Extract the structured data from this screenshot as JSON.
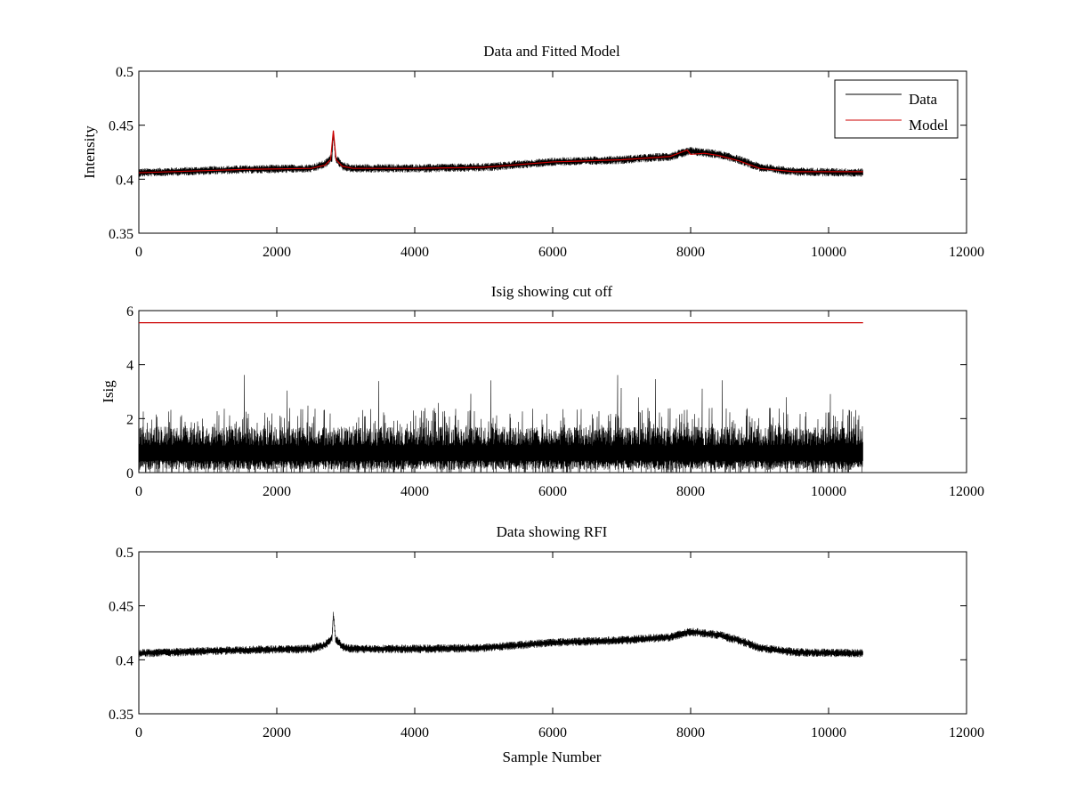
{
  "figure": {
    "background": "#ffffff"
  },
  "chart_data": [
    {
      "type": "line",
      "title": "Data and Fitted Model",
      "xlabel": "",
      "ylabel": "Intensity",
      "xlim": [
        0,
        12000
      ],
      "ylim": [
        0.35,
        0.5
      ],
      "xticks": [
        0,
        2000,
        4000,
        6000,
        8000,
        10000,
        12000
      ],
      "yticks": [
        0.35,
        0.4,
        0.45,
        0.5
      ],
      "xtick_labels": [
        "0",
        "2000",
        "4000",
        "6000",
        "8000",
        "10000",
        "12000"
      ],
      "ytick_labels": [
        "0.35",
        "0.4",
        "0.45",
        "0.5"
      ],
      "grid": false,
      "legend": {
        "position": "top-right",
        "entries": [
          "Data",
          "Model"
        ]
      },
      "series": [
        {
          "name": "Data",
          "color": "#000000",
          "kind": "noisy",
          "x_range": [
            0,
            10500
          ],
          "noise_amplitude": 0.004,
          "baseline": [
            [
              0,
              0.406
            ],
            [
              1500,
              0.409
            ],
            [
              2500,
              0.41
            ],
            [
              2700,
              0.414
            ],
            [
              2800,
              0.42
            ],
            [
              2820,
              0.443
            ],
            [
              2850,
              0.42
            ],
            [
              2950,
              0.412
            ],
            [
              3100,
              0.41
            ],
            [
              4000,
              0.41
            ],
            [
              5000,
              0.411
            ],
            [
              6000,
              0.416
            ],
            [
              7000,
              0.418
            ],
            [
              7700,
              0.421
            ],
            [
              8000,
              0.426
            ],
            [
              8400,
              0.423
            ],
            [
              8700,
              0.418
            ],
            [
              9000,
              0.411
            ],
            [
              9500,
              0.407
            ],
            [
              10500,
              0.406
            ]
          ]
        },
        {
          "name": "Model",
          "color": "#cc0000",
          "kind": "smooth",
          "x_range": [
            0,
            10500
          ],
          "points": [
            [
              0,
              0.406
            ],
            [
              1500,
              0.409
            ],
            [
              2500,
              0.41
            ],
            [
              2700,
              0.413
            ],
            [
              2780,
              0.418
            ],
            [
              2820,
              0.445
            ],
            [
              2860,
              0.418
            ],
            [
              2950,
              0.412
            ],
            [
              3100,
              0.41
            ],
            [
              4000,
              0.41
            ],
            [
              5000,
              0.411
            ],
            [
              6000,
              0.416
            ],
            [
              7000,
              0.418
            ],
            [
              7700,
              0.421
            ],
            [
              7950,
              0.427
            ],
            [
              8000,
              0.423
            ],
            [
              8200,
              0.424
            ],
            [
              8400,
              0.422
            ],
            [
              8700,
              0.417
            ],
            [
              9000,
              0.41
            ],
            [
              9500,
              0.407
            ],
            [
              10500,
              0.407
            ]
          ]
        }
      ]
    },
    {
      "type": "line",
      "title": "Isig showing cut off",
      "xlabel": "",
      "ylabel": "Isig",
      "xlim": [
        0,
        12000
      ],
      "ylim": [
        0,
        6
      ],
      "xticks": [
        0,
        2000,
        4000,
        6000,
        8000,
        10000,
        12000
      ],
      "yticks": [
        0,
        2,
        4,
        6
      ],
      "xtick_labels": [
        "0",
        "2000",
        "4000",
        "6000",
        "8000",
        "10000",
        "12000"
      ],
      "ytick_labels": [
        "0",
        "2",
        "4",
        "6"
      ],
      "grid": false,
      "series": [
        {
          "color": "#000000",
          "kind": "spiky",
          "x_range": [
            0,
            10500
          ],
          "typical_max": 2.4,
          "peak_max": 3.7
        },
        {
          "color": "#cc0000",
          "kind": "smooth",
          "points": [
            [
              0,
              5.55
            ],
            [
              10500,
              5.55
            ]
          ]
        }
      ]
    },
    {
      "type": "line",
      "title": "Data showing RFI",
      "xlabel": "Sample Number",
      "ylabel": "",
      "xlim": [
        0,
        12000
      ],
      "ylim": [
        0.35,
        0.5
      ],
      "xticks": [
        0,
        2000,
        4000,
        6000,
        8000,
        10000,
        12000
      ],
      "yticks": [
        0.35,
        0.4,
        0.45,
        0.5
      ],
      "xtick_labels": [
        "0",
        "2000",
        "4000",
        "6000",
        "8000",
        "10000",
        "12000"
      ],
      "ytick_labels": [
        "0.35",
        "0.4",
        "0.45",
        "0.5"
      ],
      "grid": false,
      "series": [
        {
          "color": "#000000",
          "kind": "noisy",
          "x_range": [
            0,
            10500
          ],
          "noise_amplitude": 0.004,
          "baseline": [
            [
              0,
              0.406
            ],
            [
              1500,
              0.409
            ],
            [
              2500,
              0.41
            ],
            [
              2700,
              0.414
            ],
            [
              2800,
              0.42
            ],
            [
              2820,
              0.443
            ],
            [
              2850,
              0.42
            ],
            [
              2950,
              0.412
            ],
            [
              3100,
              0.41
            ],
            [
              4000,
              0.41
            ],
            [
              5000,
              0.411
            ],
            [
              6000,
              0.416
            ],
            [
              7000,
              0.418
            ],
            [
              7700,
              0.421
            ],
            [
              8000,
              0.426
            ],
            [
              8400,
              0.423
            ],
            [
              8700,
              0.418
            ],
            [
              9000,
              0.411
            ],
            [
              9500,
              0.407
            ],
            [
              10500,
              0.406
            ]
          ]
        }
      ]
    }
  ]
}
